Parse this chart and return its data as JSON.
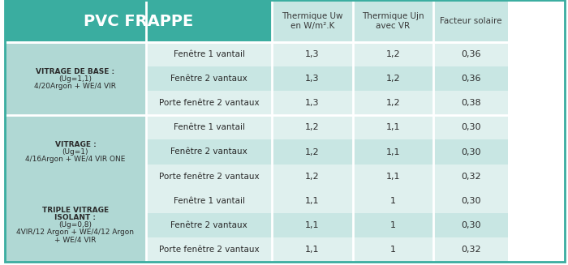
{
  "title": "PVC FRAPPE",
  "header_bg": "#3aada0",
  "header_text_color": "#ffffff",
  "col_headers": [
    "",
    "Thermique Uw\nen W/m².K",
    "Thermique Ujn\navec VR",
    "Facteur solaire"
  ],
  "col_header_bg": "#c8e6e3",
  "col_header_text_color": "#3a3a3a",
  "groups": [
    {
      "label_lines": [
        "VITRAGE DE BASE :",
        "(Ug=1,1)",
        "4/20Argon + WE/4 VIR"
      ],
      "label_bold": [
        true,
        false,
        false
      ],
      "rows": [
        [
          "Fenêtre 1 vantail",
          "1,3",
          "1,2",
          "0,36"
        ],
        [
          "Fenêtre 2 vantaux",
          "1,3",
          "1,2",
          "0,36"
        ],
        [
          "Porte fenêtre 2 vantaux",
          "1,3",
          "1,2",
          "0,38"
        ]
      ],
      "row_bg": [
        "#dff0ee",
        "#c8e6e3",
        "#dff0ee"
      ]
    },
    {
      "label_lines": [
        "VITRAGE :",
        "(Ug=1)",
        "4/16Argon + WE/4 VIR ONE"
      ],
      "label_bold": [
        true,
        false,
        false
      ],
      "rows": [
        [
          "Fenêtre 1 vantail",
          "1,2",
          "1,1",
          "0,30"
        ],
        [
          "Fenêtre 2 vantaux",
          "1,2",
          "1,1",
          "0,30"
        ],
        [
          "Porte fenêtre 2 vantaux",
          "1,2",
          "1,1",
          "0,32"
        ]
      ],
      "row_bg": [
        "#dff0ee",
        "#c8e6e3",
        "#dff0ee"
      ]
    },
    {
      "label_lines": [
        "TRIPLE VITRAGE",
        "ISOLANT :",
        "(Ug=0,8)",
        "4VIR/12 Argon + WE/4/12 Argon",
        "+ WE/4 VIR"
      ],
      "label_bold": [
        true,
        true,
        false,
        false,
        false
      ],
      "rows": [
        [
          "Fenêtre 1 vantail",
          "1,1",
          "1",
          "0,30"
        ],
        [
          "Fenêtre 2 vantaux",
          "1,1",
          "1",
          "0,30"
        ],
        [
          "Porte fenêtre 2 vantaux",
          "1,1",
          "1",
          "0,32"
        ]
      ],
      "row_bg": [
        "#dff0ee",
        "#c8e6e3",
        "#dff0ee"
      ]
    }
  ],
  "left_col_bg": "#b0d8d4",
  "left_col_text_color": "#2a2a2a",
  "data_text_color": "#2a2a2a",
  "row_label_text_color": "#2a2a2a",
  "divider_color": "#ffffff",
  "border_color": "#3aada0"
}
